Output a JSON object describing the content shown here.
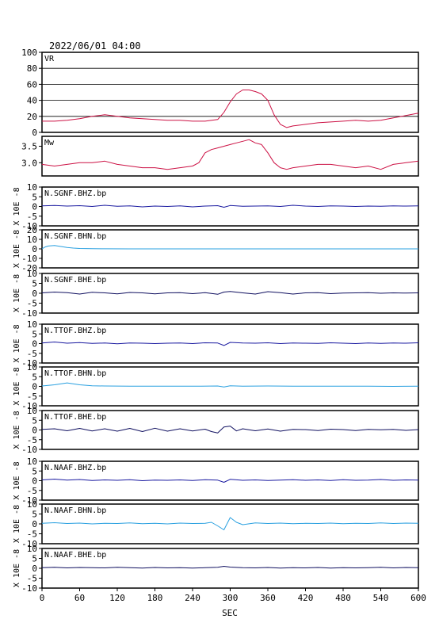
{
  "page": {
    "timestamp": "2022/06/01 04:00",
    "xlabel": "SEC"
  },
  "colors": {
    "vr_trace": "#cc1144",
    "mw_trace": "#cc1144",
    "bhz_trace": "#1a1aa0",
    "bhn_trace": "#2aa0e0",
    "bhe_trace": "#101060",
    "grid": "#000000"
  },
  "chart_data": [
    {
      "id": "vr",
      "type": "line",
      "label": "VR",
      "xlim": [
        0,
        600
      ],
      "ylim": [
        0,
        100
      ],
      "yticks": [
        0,
        20,
        40,
        60,
        80,
        100
      ],
      "grid": true,
      "color_key": "vr_trace",
      "x": [
        0,
        20,
        40,
        60,
        80,
        100,
        120,
        140,
        160,
        180,
        200,
        220,
        240,
        260,
        280,
        290,
        300,
        310,
        320,
        330,
        340,
        350,
        360,
        370,
        380,
        390,
        400,
        420,
        440,
        460,
        480,
        500,
        520,
        540,
        560,
        580,
        600
      ],
      "y": [
        14,
        14,
        15,
        17,
        20,
        22,
        20,
        18,
        17,
        16,
        15,
        15,
        14,
        14,
        16,
        25,
        38,
        48,
        53,
        53,
        51,
        48,
        40,
        22,
        10,
        6,
        8,
        10,
        12,
        13,
        14,
        15,
        14,
        15,
        18,
        21,
        24
      ]
    },
    {
      "id": "mw",
      "type": "line",
      "label": "Mw",
      "xlim": [
        0,
        600
      ],
      "ylim": [
        2.6,
        3.8
      ],
      "yticks": [
        3.0,
        3.5
      ],
      "grid": false,
      "color_key": "mw_trace",
      "x": [
        0,
        20,
        40,
        60,
        80,
        100,
        120,
        140,
        160,
        180,
        200,
        220,
        240,
        250,
        260,
        270,
        280,
        290,
        300,
        310,
        320,
        330,
        340,
        350,
        360,
        370,
        380,
        390,
        400,
        420,
        440,
        460,
        480,
        500,
        520,
        540,
        560,
        580,
        600
      ],
      "y": [
        2.95,
        2.9,
        2.95,
        3.0,
        3.0,
        3.05,
        2.95,
        2.9,
        2.85,
        2.85,
        2.8,
        2.85,
        2.9,
        3.0,
        3.3,
        3.4,
        3.45,
        3.5,
        3.55,
        3.6,
        3.65,
        3.7,
        3.6,
        3.55,
        3.3,
        3.0,
        2.85,
        2.8,
        2.85,
        2.9,
        2.95,
        2.95,
        2.9,
        2.85,
        2.9,
        2.8,
        2.95,
        3.0,
        3.05
      ]
    },
    {
      "id": "sgnf_bhz",
      "type": "line",
      "label": "N.SGNF.BHZ.bp",
      "ylabel": "X 10E -8",
      "xlim": [
        0,
        600
      ],
      "ylim": [
        -10,
        10
      ],
      "yticks": [
        -10,
        -5,
        0,
        5,
        10
      ],
      "color_key": "bhz_trace",
      "x": [
        0,
        20,
        40,
        60,
        80,
        100,
        120,
        140,
        160,
        180,
        200,
        220,
        240,
        260,
        280,
        290,
        300,
        320,
        340,
        360,
        380,
        400,
        420,
        440,
        460,
        480,
        500,
        520,
        540,
        560,
        580,
        600
      ],
      "y": [
        0.3,
        0.5,
        0.2,
        0.4,
        0.0,
        0.6,
        0.1,
        0.3,
        -0.2,
        0.2,
        0.0,
        0.3,
        -0.2,
        0.2,
        0.4,
        -0.4,
        0.5,
        0.1,
        0.2,
        0.3,
        0.0,
        0.6,
        0.2,
        0.0,
        0.3,
        0.2,
        0.0,
        0.2,
        0.1,
        0.3,
        0.2,
        0.3
      ]
    },
    {
      "id": "sgnf_bhn",
      "type": "line",
      "label": "N.SGNF.BHN.bp",
      "ylabel": "X 10E -8",
      "xlim": [
        0,
        600
      ],
      "ylim": [
        -20,
        20
      ],
      "yticks": [
        -20,
        -10,
        0,
        10,
        20
      ],
      "color_key": "bhn_trace",
      "x": [
        0,
        5,
        10,
        20,
        30,
        40,
        50,
        60,
        80,
        100,
        140,
        200,
        300,
        400,
        500,
        600
      ],
      "y": [
        0,
        2,
        3,
        3.5,
        2.5,
        1.5,
        0.8,
        0.4,
        0.2,
        0.1,
        0.0,
        0.0,
        0.0,
        0.0,
        0.0,
        0.0
      ]
    },
    {
      "id": "sgnf_bhe",
      "type": "line",
      "label": "N.SGNF.BHE.bp",
      "ylabel": "X 10E -8",
      "xlim": [
        0,
        600
      ],
      "ylim": [
        -10,
        10
      ],
      "yticks": [
        -10,
        -5,
        0,
        5,
        10
      ],
      "color_key": "bhe_trace",
      "x": [
        0,
        20,
        40,
        60,
        80,
        100,
        120,
        140,
        160,
        180,
        200,
        220,
        240,
        260,
        280,
        290,
        300,
        320,
        340,
        360,
        380,
        400,
        420,
        440,
        460,
        480,
        500,
        520,
        540,
        560,
        580,
        600
      ],
      "y": [
        0.2,
        0.6,
        0.3,
        -0.4,
        0.5,
        0.2,
        -0.3,
        0.4,
        0.2,
        -0.3,
        0.2,
        0.3,
        -0.2,
        0.3,
        -0.5,
        0.6,
        0.9,
        0.2,
        -0.4,
        0.8,
        0.3,
        -0.4,
        0.2,
        0.3,
        -0.2,
        0.1,
        0.2,
        0.3,
        0.0,
        0.2,
        0.1,
        0.2
      ]
    },
    {
      "id": "ttof_bhz",
      "type": "line",
      "label": "N.TTOF.BHZ.bp",
      "ylabel": "X 10E -8",
      "xlim": [
        0,
        600
      ],
      "ylim": [
        -10,
        10
      ],
      "yticks": [
        -10,
        -5,
        0,
        5,
        10
      ],
      "color_key": "bhz_trace",
      "x": [
        0,
        20,
        40,
        60,
        80,
        100,
        120,
        140,
        160,
        180,
        200,
        220,
        240,
        260,
        280,
        290,
        300,
        320,
        340,
        360,
        380,
        400,
        420,
        440,
        460,
        480,
        500,
        520,
        540,
        560,
        580,
        600
      ],
      "y": [
        0.3,
        0.8,
        0.2,
        0.5,
        0.1,
        0.3,
        -0.1,
        0.3,
        0.2,
        0.0,
        0.2,
        0.3,
        0.0,
        0.4,
        0.3,
        -1.0,
        0.6,
        0.3,
        0.2,
        0.4,
        0.0,
        0.3,
        0.2,
        0.1,
        0.4,
        0.2,
        0.0,
        0.3,
        0.1,
        0.3,
        0.2,
        0.4
      ]
    },
    {
      "id": "ttof_bhn",
      "type": "line",
      "label": "N.TTOF.BHN.bp",
      "ylabel": "X 10E -8",
      "xlim": [
        0,
        600
      ],
      "ylim": [
        -10,
        10
      ],
      "yticks": [
        -10,
        -5,
        0,
        5,
        10
      ],
      "color_key": "bhn_trace",
      "x": [
        0,
        20,
        40,
        60,
        80,
        100,
        140,
        200,
        250,
        280,
        290,
        300,
        320,
        360,
        400,
        440,
        480,
        520,
        560,
        600
      ],
      "y": [
        0.2,
        0.8,
        1.8,
        0.8,
        0.3,
        0.2,
        0.1,
        0.1,
        0.1,
        0.2,
        -0.3,
        0.3,
        0.1,
        0.2,
        0.1,
        0.1,
        0.1,
        0.1,
        0.0,
        0.1
      ]
    },
    {
      "id": "ttof_bhe",
      "type": "line",
      "label": "N.TTOF.BHE.bp",
      "ylabel": "X 10E -8",
      "xlim": [
        0,
        600
      ],
      "ylim": [
        -10,
        10
      ],
      "yticks": [
        -10,
        -5,
        0,
        5,
        10
      ],
      "color_key": "bhe_trace",
      "x": [
        0,
        20,
        40,
        60,
        80,
        100,
        120,
        140,
        160,
        180,
        200,
        220,
        240,
        260,
        270,
        280,
        290,
        300,
        310,
        320,
        340,
        360,
        380,
        400,
        420,
        440,
        460,
        480,
        500,
        520,
        540,
        560,
        580,
        600
      ],
      "y": [
        0.3,
        0.6,
        -0.4,
        0.8,
        -0.5,
        0.6,
        -0.6,
        0.8,
        -0.8,
        0.9,
        -0.6,
        0.6,
        -0.5,
        0.4,
        -0.8,
        -1.5,
        1.5,
        2.0,
        -0.5,
        0.6,
        -0.4,
        0.5,
        -0.6,
        0.3,
        0.2,
        -0.3,
        0.4,
        0.2,
        -0.3,
        0.3,
        0.1,
        0.3,
        -0.2,
        0.2
      ]
    },
    {
      "id": "naaf_bhz",
      "type": "line",
      "label": "N.NAAF.BHZ.bp",
      "ylabel": "X 10E -8",
      "xlim": [
        0,
        600
      ],
      "ylim": [
        -10,
        10
      ],
      "yticks": [
        -10,
        -5,
        0,
        5,
        10
      ],
      "color_key": "bhz_trace",
      "x": [
        0,
        20,
        40,
        60,
        80,
        100,
        120,
        140,
        160,
        180,
        200,
        220,
        240,
        260,
        280,
        290,
        300,
        320,
        340,
        360,
        380,
        400,
        420,
        440,
        460,
        480,
        500,
        520,
        540,
        560,
        580,
        600
      ],
      "y": [
        0.4,
        0.8,
        0.3,
        0.6,
        0.1,
        0.4,
        0.2,
        0.5,
        0.0,
        0.3,
        0.2,
        0.4,
        0.1,
        0.5,
        0.3,
        -0.8,
        0.7,
        0.2,
        0.4,
        0.1,
        0.3,
        0.5,
        0.2,
        0.4,
        0.1,
        0.5,
        0.2,
        0.3,
        0.6,
        0.2,
        0.4,
        0.3
      ]
    },
    {
      "id": "naaf_bhn",
      "type": "line",
      "label": "N.NAAF.BHN.bp",
      "ylabel": "X 10E -8",
      "xlim": [
        0,
        600
      ],
      "ylim": [
        -10,
        10
      ],
      "yticks": [
        -10,
        -5,
        0,
        5,
        10
      ],
      "color_key": "bhn_trace",
      "x": [
        0,
        20,
        40,
        60,
        80,
        100,
        120,
        140,
        160,
        180,
        200,
        220,
        240,
        260,
        270,
        280,
        290,
        300,
        310,
        320,
        340,
        360,
        380,
        400,
        420,
        440,
        460,
        480,
        500,
        520,
        540,
        560,
        580,
        600
      ],
      "y": [
        0.3,
        0.6,
        0.2,
        0.4,
        0.0,
        0.3,
        0.2,
        0.5,
        0.1,
        0.3,
        0.0,
        0.4,
        0.2,
        0.3,
        0.8,
        -1.0,
        -3.0,
        3.2,
        0.8,
        -0.4,
        0.5,
        0.2,
        0.4,
        0.1,
        0.3,
        0.2,
        0.4,
        0.1,
        0.3,
        0.2,
        0.5,
        0.2,
        0.4,
        0.3
      ]
    },
    {
      "id": "naaf_bhe",
      "type": "line",
      "label": "N.NAAF.BHE.bp",
      "ylabel": "X 10E -8",
      "xlim": [
        0,
        600
      ],
      "ylim": [
        -10,
        10
      ],
      "yticks": [
        -10,
        -5,
        0,
        5,
        10
      ],
      "color_key": "bhe_trace",
      "x": [
        0,
        20,
        40,
        60,
        80,
        100,
        120,
        140,
        160,
        180,
        200,
        220,
        240,
        260,
        280,
        290,
        300,
        320,
        340,
        360,
        380,
        400,
        420,
        440,
        460,
        480,
        500,
        520,
        540,
        560,
        580,
        600
      ],
      "y": [
        0.3,
        0.5,
        0.2,
        0.4,
        0.3,
        0.2,
        0.5,
        0.3,
        0.1,
        0.4,
        0.2,
        0.3,
        0.1,
        0.3,
        0.5,
        1.0,
        0.6,
        0.3,
        0.2,
        0.4,
        0.1,
        0.3,
        0.2,
        0.4,
        0.1,
        0.3,
        0.2,
        0.3,
        0.5,
        0.2,
        0.4,
        0.3
      ]
    }
  ],
  "xaxis": {
    "xlim": [
      0,
      600
    ],
    "ticks": [
      0,
      60,
      120,
      180,
      240,
      300,
      360,
      420,
      480,
      540,
      600
    ]
  }
}
